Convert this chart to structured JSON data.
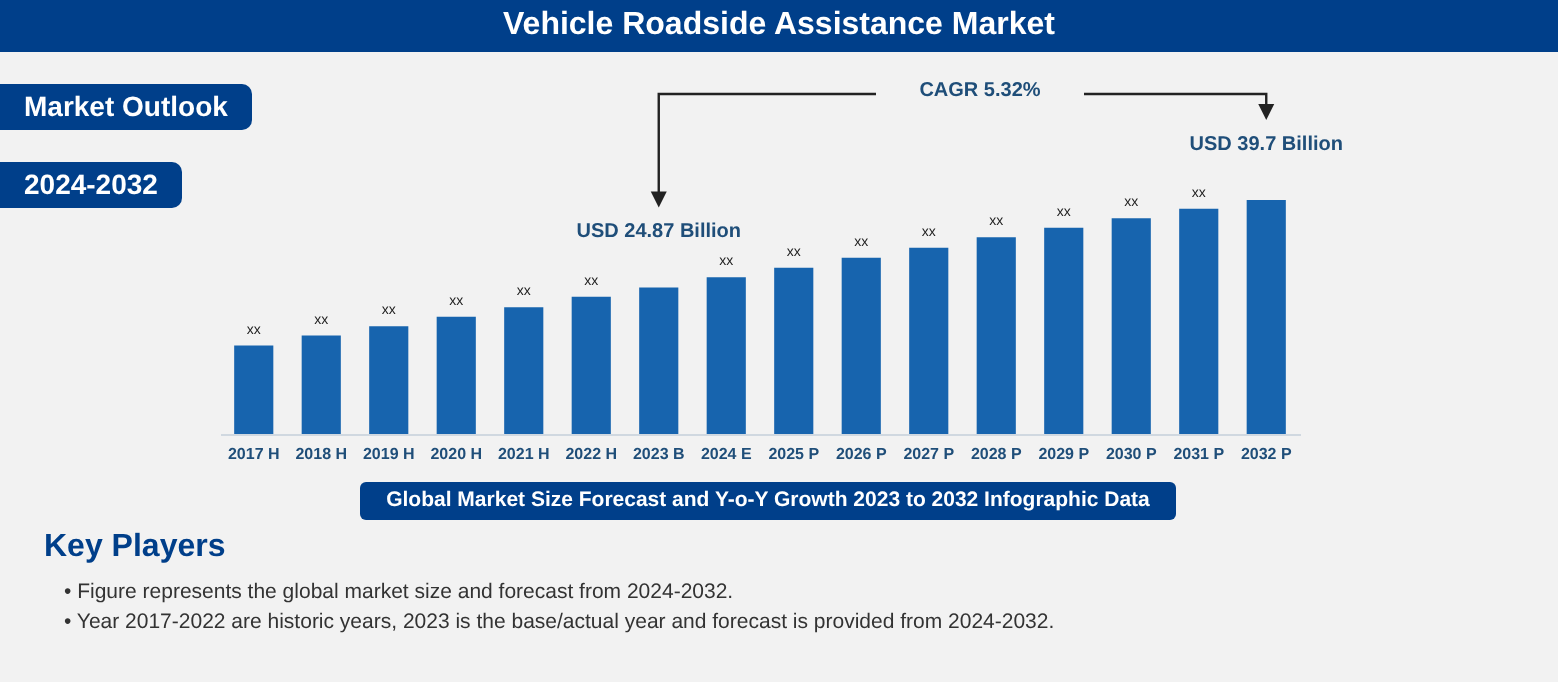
{
  "chart_data": {
    "type": "bar",
    "title": "Vehicle Roadside Assistance Market",
    "subtitle": "Global Market Size Forecast and Y-o-Y Growth 2023 to 2032 Infographic Data",
    "categories": [
      "2017 H",
      "2018 H",
      "2019 H",
      "2020 H",
      "2021 H",
      "2022 H",
      "2023 B",
      "2024 E",
      "2025 P",
      "2026 P",
      "2027 P",
      "2028 P",
      "2029 P",
      "2030 P",
      "2031 P",
      "2032 P"
    ],
    "values": [
      15.0,
      16.7,
      18.3,
      19.9,
      21.5,
      23.3,
      24.87,
      26.6,
      28.2,
      29.9,
      31.6,
      33.4,
      35.0,
      36.6,
      38.2,
      39.7
    ],
    "value_labels": [
      "xx",
      "xx",
      "xx",
      "xx",
      "xx",
      "xx",
      "USD 24.87 Billion",
      "xx",
      "xx",
      "xx",
      "xx",
      "xx",
      "xx",
      "xx",
      "xx",
      "USD 39.7 Billion"
    ],
    "color": "#1764ae",
    "annotations": [
      "Market Outlook",
      "2024-2032",
      "CAGR 5.32%",
      "Key Players",
      "• Figure represents the global market size and forecast from 2024-2032.",
      "• Year 2017-2022 are historic years, 2023 is the base/actual year and forecast is provided from 2024-2032."
    ]
  }
}
